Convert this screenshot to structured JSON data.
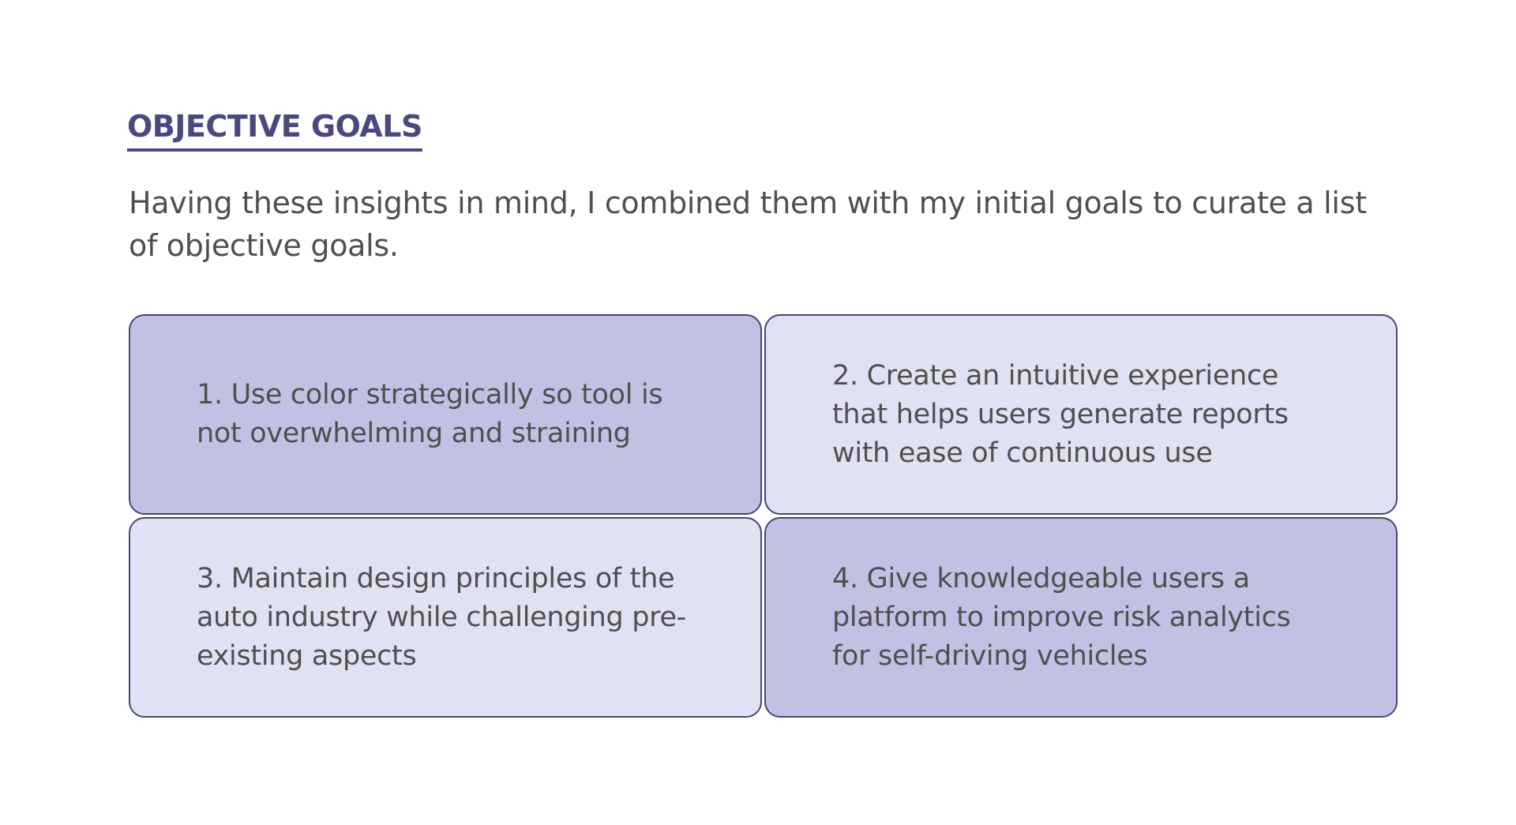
{
  "heading": "OBJECTIVE GOALS",
  "intro": "Having these insights in mind, I combined them with my initial goals to curate a list of objective goals.",
  "goals": [
    {
      "text": "1. Use color strategically so tool is not overwhelming and straining"
    },
    {
      "text": "2. Create an intuitive experience that helps users generate reports with ease of continuous use"
    },
    {
      "text": "3. Maintain design principles of the auto industry while challenging pre-existing aspects"
    },
    {
      "text": "4. Give knowledgeable users a platform to improve risk analytics for self-driving vehicles"
    }
  ],
  "colors": {
    "accent": "#4a4880",
    "card_dark": "#c2c1e4",
    "card_light": "#e1e1f4",
    "card_border": "#47457a",
    "body_text": "#4f4f4f"
  }
}
